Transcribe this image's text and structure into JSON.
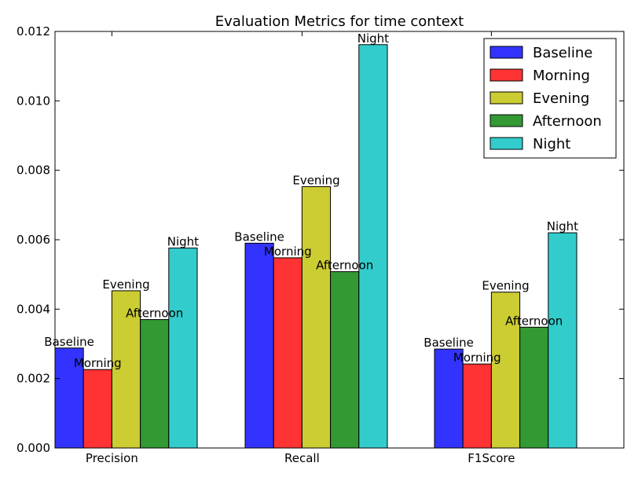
{
  "chart_data": {
    "type": "bar",
    "title": "Evaluation Metrics for time context",
    "xlabel": "",
    "ylabel": "",
    "categories": [
      "Precision",
      "Recall",
      "F1Score"
    ],
    "ylim": [
      0,
      0.012
    ],
    "yticks": [
      "0.000",
      "0.002",
      "0.004",
      "0.006",
      "0.008",
      "0.010",
      "0.012"
    ],
    "grid": false,
    "legend_position": "top-right",
    "series": [
      {
        "name": "Baseline",
        "color": "#3333ff",
        "values": [
          0.00288,
          0.0059,
          0.00285
        ]
      },
      {
        "name": "Morning",
        "color": "#ff3333",
        "values": [
          0.00226,
          0.00548,
          0.00242
        ]
      },
      {
        "name": "Evening",
        "color": "#cccc33",
        "values": [
          0.00453,
          0.00753,
          0.00449
        ]
      },
      {
        "name": "Afternoon",
        "color": "#339933",
        "values": [
          0.0037,
          0.00508,
          0.00348
        ]
      },
      {
        "name": "Night",
        "color": "#33cccc",
        "values": [
          0.00576,
          0.01162,
          0.0062
        ]
      }
    ]
  }
}
